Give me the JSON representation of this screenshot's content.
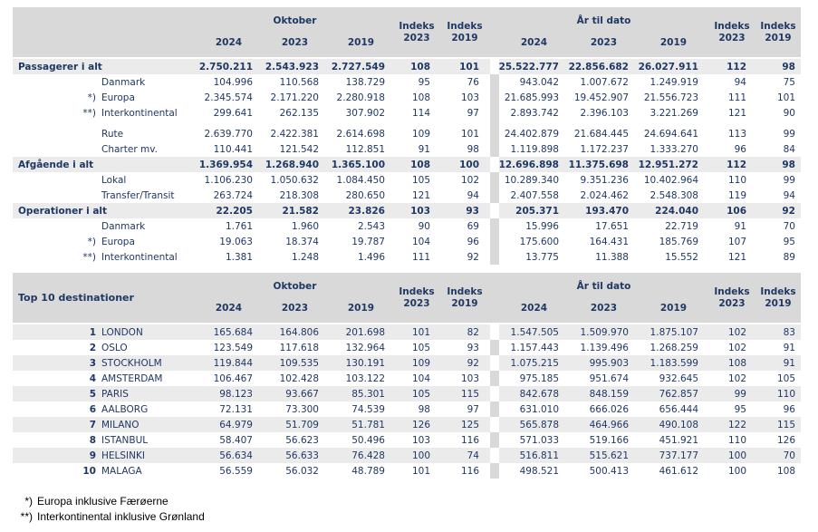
{
  "colors": {
    "header_bg": "#D9D9D9",
    "stripe_bg": "#EBEBEB",
    "text_navy": "#1F3864",
    "footnote_text": "#000000",
    "page_bg": "#FFFFFF"
  },
  "tables": [
    {
      "id": "traffic-summary",
      "label_header": "",
      "sections": [
        {
          "label": "Oktober"
        },
        {
          "label": "År til dato"
        }
      ],
      "year_headers": [
        "2024",
        "2023",
        "2019"
      ],
      "index_headers": [
        [
          "Indeks",
          "2023"
        ],
        [
          "Indeks",
          "2019"
        ]
      ],
      "rows": [
        {
          "type": "total",
          "marker": "",
          "label": "Passagerer i alt",
          "okt": [
            "2.750.211",
            "2.543.923",
            "2.727.549"
          ],
          "okt_idx": [
            "108",
            "101"
          ],
          "ytd": [
            "25.522.777",
            "22.856.682",
            "26.027.911"
          ],
          "ytd_idx": [
            "112",
            "98"
          ]
        },
        {
          "type": "sub",
          "marker": "",
          "label": "Danmark",
          "okt": [
            "104.996",
            "110.568",
            "138.729"
          ],
          "okt_idx": [
            "95",
            "76"
          ],
          "ytd": [
            "943.042",
            "1.007.672",
            "1.249.919"
          ],
          "ytd_idx": [
            "94",
            "75"
          ]
        },
        {
          "type": "sub",
          "marker": "*)",
          "label": "Europa",
          "okt": [
            "2.345.574",
            "2.171.220",
            "2.280.918"
          ],
          "okt_idx": [
            "108",
            "103"
          ],
          "ytd": [
            "21.685.993",
            "19.452.907",
            "21.556.723"
          ],
          "ytd_idx": [
            "111",
            "101"
          ]
        },
        {
          "type": "sub",
          "marker": "**)",
          "label": "Interkontinental",
          "okt": [
            "299.641",
            "262.135",
            "307.902"
          ],
          "okt_idx": [
            "114",
            "97"
          ],
          "ytd": [
            "2.893.742",
            "2.396.103",
            "3.221.269"
          ],
          "ytd_idx": [
            "121",
            "90"
          ]
        },
        {
          "type": "spacer"
        },
        {
          "type": "sub",
          "marker": "",
          "label": "Rute",
          "okt": [
            "2.639.770",
            "2.422.381",
            "2.614.698"
          ],
          "okt_idx": [
            "109",
            "101"
          ],
          "ytd": [
            "24.402.879",
            "21.684.445",
            "24.694.641"
          ],
          "ytd_idx": [
            "113",
            "99"
          ]
        },
        {
          "type": "sub",
          "marker": "",
          "label": "Charter mv.",
          "okt": [
            "110.441",
            "121.542",
            "112.851"
          ],
          "okt_idx": [
            "91",
            "98"
          ],
          "ytd": [
            "1.119.898",
            "1.172.237",
            "1.333.270"
          ],
          "ytd_idx": [
            "96",
            "84"
          ]
        },
        {
          "type": "total",
          "marker": "",
          "label": "Afgående i alt",
          "okt": [
            "1.369.954",
            "1.268.940",
            "1.365.100"
          ],
          "okt_idx": [
            "108",
            "100"
          ],
          "ytd": [
            "12.696.898",
            "11.375.698",
            "12.951.272"
          ],
          "ytd_idx": [
            "112",
            "98"
          ]
        },
        {
          "type": "sub",
          "marker": "",
          "label": "Lokal",
          "okt": [
            "1.106.230",
            "1.050.632",
            "1.084.450"
          ],
          "okt_idx": [
            "105",
            "102"
          ],
          "ytd": [
            "10.289.340",
            "9.351.236",
            "10.402.964"
          ],
          "ytd_idx": [
            "110",
            "99"
          ]
        },
        {
          "type": "sub",
          "marker": "",
          "label": "Transfer/Transit",
          "okt": [
            "263.724",
            "218.308",
            "280.650"
          ],
          "okt_idx": [
            "121",
            "94"
          ],
          "ytd": [
            "2.407.558",
            "2.024.462",
            "2.548.308"
          ],
          "ytd_idx": [
            "119",
            "94"
          ]
        },
        {
          "type": "total",
          "marker": "",
          "label": "Operationer i alt",
          "okt": [
            "22.205",
            "21.582",
            "23.826"
          ],
          "okt_idx": [
            "103",
            "93"
          ],
          "ytd": [
            "205.371",
            "193.470",
            "224.040"
          ],
          "ytd_idx": [
            "106",
            "92"
          ]
        },
        {
          "type": "sub",
          "marker": "",
          "label": "Danmark",
          "okt": [
            "1.761",
            "1.960",
            "2.543"
          ],
          "okt_idx": [
            "90",
            "69"
          ],
          "ytd": [
            "15.996",
            "17.651",
            "22.719"
          ],
          "ytd_idx": [
            "91",
            "70"
          ]
        },
        {
          "type": "sub",
          "marker": "*)",
          "label": "Europa",
          "okt": [
            "19.063",
            "18.374",
            "19.787"
          ],
          "okt_idx": [
            "104",
            "96"
          ],
          "ytd": [
            "175.600",
            "164.431",
            "185.769"
          ],
          "ytd_idx": [
            "107",
            "95"
          ]
        },
        {
          "type": "sub",
          "marker": "**)",
          "label": "Interkontinental",
          "okt": [
            "1.381",
            "1.248",
            "1.496"
          ],
          "okt_idx": [
            "111",
            "92"
          ],
          "ytd": [
            "13.775",
            "11.388",
            "15.552"
          ],
          "ytd_idx": [
            "121",
            "89"
          ]
        }
      ]
    },
    {
      "id": "top10-destinations",
      "label_header": "Top 10 destinationer",
      "sections": [
        {
          "label": "Oktober"
        },
        {
          "label": "År til dato"
        }
      ],
      "year_headers": [
        "2024",
        "2023",
        "2019"
      ],
      "index_headers": [
        [
          "Indeks",
          "2023"
        ],
        [
          "Indeks",
          "2019"
        ]
      ],
      "rows": [
        {
          "type": "rank",
          "marker": "1",
          "label": "LONDON",
          "okt": [
            "165.684",
            "164.806",
            "201.698"
          ],
          "okt_idx": [
            "101",
            "82"
          ],
          "ytd": [
            "1.547.505",
            "1.509.970",
            "1.875.107"
          ],
          "ytd_idx": [
            "102",
            "83"
          ]
        },
        {
          "type": "rank",
          "marker": "2",
          "label": "OSLO",
          "okt": [
            "123.549",
            "117.618",
            "132.964"
          ],
          "okt_idx": [
            "105",
            "93"
          ],
          "ytd": [
            "1.157.443",
            "1.139.496",
            "1.268.259"
          ],
          "ytd_idx": [
            "102",
            "91"
          ]
        },
        {
          "type": "rank",
          "marker": "3",
          "label": "STOCKHOLM",
          "okt": [
            "119.844",
            "109.535",
            "130.191"
          ],
          "okt_idx": [
            "109",
            "92"
          ],
          "ytd": [
            "1.075.215",
            "995.903",
            "1.183.599"
          ],
          "ytd_idx": [
            "108",
            "91"
          ]
        },
        {
          "type": "rank",
          "marker": "4",
          "label": "AMSTERDAM",
          "okt": [
            "106.467",
            "102.428",
            "103.122"
          ],
          "okt_idx": [
            "104",
            "103"
          ],
          "ytd": [
            "975.185",
            "951.674",
            "932.645"
          ],
          "ytd_idx": [
            "102",
            "105"
          ]
        },
        {
          "type": "rank",
          "marker": "5",
          "label": "PARIS",
          "okt": [
            "98.123",
            "93.667",
            "85.301"
          ],
          "okt_idx": [
            "105",
            "115"
          ],
          "ytd": [
            "842.678",
            "848.159",
            "762.857"
          ],
          "ytd_idx": [
            "99",
            "110"
          ]
        },
        {
          "type": "rank",
          "marker": "6",
          "label": "AALBORG",
          "okt": [
            "72.131",
            "73.300",
            "74.539"
          ],
          "okt_idx": [
            "98",
            "97"
          ],
          "ytd": [
            "631.010",
            "666.026",
            "656.444"
          ],
          "ytd_idx": [
            "95",
            "96"
          ]
        },
        {
          "type": "rank",
          "marker": "7",
          "label": "MILANO",
          "okt": [
            "64.979",
            "51.709",
            "51.781"
          ],
          "okt_idx": [
            "126",
            "125"
          ],
          "ytd": [
            "565.878",
            "464.966",
            "490.108"
          ],
          "ytd_idx": [
            "122",
            "115"
          ]
        },
        {
          "type": "rank",
          "marker": "8",
          "label": "ISTANBUL",
          "okt": [
            "58.407",
            "56.623",
            "50.496"
          ],
          "okt_idx": [
            "103",
            "116"
          ],
          "ytd": [
            "571.033",
            "519.166",
            "451.921"
          ],
          "ytd_idx": [
            "110",
            "126"
          ]
        },
        {
          "type": "rank",
          "marker": "9",
          "label": "HELSINKI",
          "okt": [
            "56.634",
            "56.633",
            "76.428"
          ],
          "okt_idx": [
            "100",
            "74"
          ],
          "ytd": [
            "516.811",
            "515.621",
            "737.177"
          ],
          "ytd_idx": [
            "100",
            "70"
          ]
        },
        {
          "type": "rank",
          "marker": "10",
          "label": "MALAGA",
          "okt": [
            "56.559",
            "56.032",
            "48.789"
          ],
          "okt_idx": [
            "101",
            "116"
          ],
          "ytd": [
            "498.521",
            "500.413",
            "461.612"
          ],
          "ytd_idx": [
            "100",
            "108"
          ]
        }
      ]
    }
  ],
  "footnotes": [
    {
      "marker": "*)",
      "text": "Europa inklusive Færøerne"
    },
    {
      "marker": "**)",
      "text": "Interkontinental inklusive Grønland"
    }
  ]
}
